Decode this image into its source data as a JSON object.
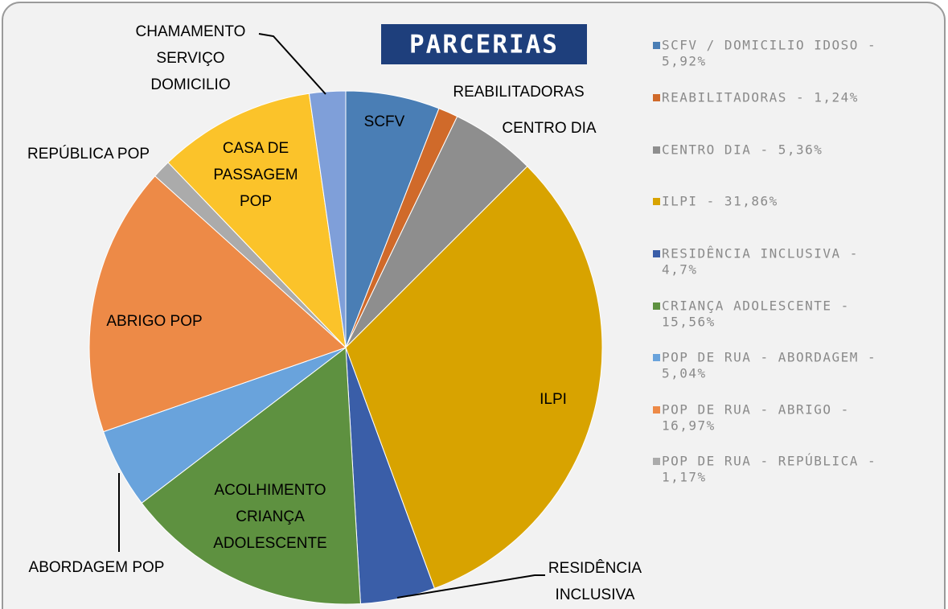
{
  "chart_data": {
    "type": "pie",
    "title": "PARCERIAS",
    "labels": [
      [
        "SCFV"
      ],
      [
        "REABILITADORAS"
      ],
      [
        "CENTRO DIA"
      ],
      [
        "ILPI"
      ],
      [
        "RESIDÊNCIA",
        "INCLUSIVA"
      ],
      [
        "ACOLHIMENTO",
        "CRIANÇA",
        "ADOLESCENTE"
      ],
      [
        "ABORDAGEM POP"
      ],
      [
        "ABRIGO POP"
      ],
      [
        "REPÚBLICA POP"
      ],
      [
        "CASA DE",
        "PASSAGEM",
        "POP"
      ],
      [
        "CHAMAMENTO",
        "SERVIÇO",
        "DOMICILIO"
      ]
    ],
    "values": [
      5.92,
      1.24,
      5.36,
      31.86,
      4.7,
      15.56,
      5.04,
      16.97,
      1.17,
      9.9,
      2.28
    ],
    "colors": [
      "#4a7eb5",
      "#d06a2a",
      "#8e8e8e",
      "#d8a300",
      "#3a5ea8",
      "#5e9140",
      "#69a3dc",
      "#ed8a47",
      "#ababab",
      "#fbc32a",
      "#7f9fd9"
    ],
    "legend": [
      [
        "SCFV / DOMICILIO IDOSO -",
        "5,92%"
      ],
      [
        "REABILITADORAS - 1,24%"
      ],
      [
        "CENTRO DIA - 5,36%"
      ],
      [
        "ILPI - 31,86%"
      ],
      [
        "RESIDÊNCIA INCLUSIVA -",
        "4,7%"
      ],
      [
        "CRIANÇA ADOLESCENTE -",
        "15,56%"
      ],
      [
        "POP DE RUA - ABORDAGEM -",
        "5,04%"
      ],
      [
        "POP DE RUA - ABRIGO -",
        "16,97%"
      ],
      [
        "POP DE RUA - REPÚBLICA -",
        "1,17%"
      ]
    ]
  }
}
